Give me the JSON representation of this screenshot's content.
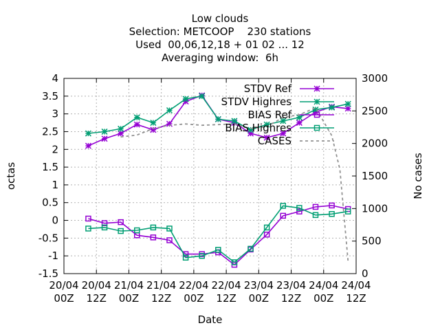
{
  "chart_data": {
    "type": "line",
    "title_lines": [
      "Low clouds",
      "Selection: METCOOP    230 stations",
      "Used  00,06,12,18 + 01 02 ... 12",
      "Averaging window:  6h"
    ],
    "xlabel": "Date",
    "ylabel": "octas",
    "y2label": "No cases",
    "x_ticks": [
      "20/04\n00Z",
      "20/04\n12Z",
      "21/04\n00Z",
      "21/04\n12Z",
      "22/04\n00Z",
      "22/04\n12Z",
      "23/04\n00Z",
      "23/04\n12Z",
      "24/04\n00Z",
      "24/04\n12Z"
    ],
    "x_tick_hours": [
      0,
      12,
      24,
      36,
      48,
      60,
      72,
      84,
      96,
      108
    ],
    "xlim_hours": [
      0,
      108
    ],
    "ylim": [
      -1.5,
      4
    ],
    "y_ticks": [
      "-1.5",
      "-1",
      "-0.5",
      "0",
      "0.5",
      "1",
      "1.5",
      "2",
      "2.5",
      "3",
      "3.5",
      "4"
    ],
    "y2lim": [
      0,
      3000
    ],
    "y2_ticks": [
      "0",
      "500",
      "1000",
      "1500",
      "2000",
      "2500",
      "3000"
    ],
    "grid": true,
    "legend_position": "top-right",
    "x_hours": [
      9,
      15,
      21,
      27,
      33,
      39,
      45,
      51,
      57,
      63,
      69,
      75,
      81,
      87,
      93,
      99,
      105
    ],
    "series": [
      {
        "name": "STDV Ref",
        "axis": "y1",
        "color": "#9400d3",
        "marker": "star",
        "dash": false,
        "values": [
          2.1,
          2.3,
          2.45,
          2.7,
          2.55,
          2.72,
          3.35,
          3.52,
          2.85,
          2.75,
          2.45,
          2.33,
          2.45,
          2.75,
          3.05,
          3.2,
          3.15
        ]
      },
      {
        "name": "STDV Highres",
        "axis": "y1",
        "color": "#009e73",
        "marker": "star",
        "dash": false,
        "values": [
          2.45,
          2.5,
          2.58,
          2.9,
          2.75,
          3.1,
          3.42,
          3.5,
          2.85,
          2.8,
          2.55,
          2.7,
          2.8,
          2.9,
          3.12,
          3.18,
          3.28
        ]
      },
      {
        "name": "BIAS Ref",
        "axis": "y1",
        "color": "#9400d3",
        "marker": "square",
        "dash": false,
        "values": [
          0.05,
          -0.08,
          -0.05,
          -0.42,
          -0.48,
          -0.56,
          -0.95,
          -0.95,
          -0.9,
          -1.25,
          -0.82,
          -0.4,
          0.13,
          0.25,
          0.38,
          0.42,
          0.32
        ]
      },
      {
        "name": "BIAS Highres",
        "axis": "y1",
        "color": "#009e73",
        "marker": "square",
        "dash": false,
        "values": [
          -0.23,
          -0.2,
          -0.3,
          -0.28,
          -0.2,
          -0.23,
          -1.05,
          -1.0,
          -0.83,
          -1.18,
          -0.8,
          -0.2,
          0.41,
          0.35,
          0.15,
          0.18,
          0.25
        ]
      },
      {
        "name": "CASES",
        "axis": "y2",
        "color": "#909090",
        "marker": "none",
        "dash": true,
        "x_hours": [
          21,
          27,
          33,
          39,
          45,
          51,
          57,
          63,
          69,
          75,
          81,
          87,
          93,
          99,
          102,
          105
        ],
        "values": [
          2100,
          2130,
          2230,
          2280,
          2300,
          2280,
          2290,
          2300,
          2230,
          2260,
          2400,
          2440,
          2550,
          2120,
          1600,
          200
        ]
      }
    ]
  }
}
